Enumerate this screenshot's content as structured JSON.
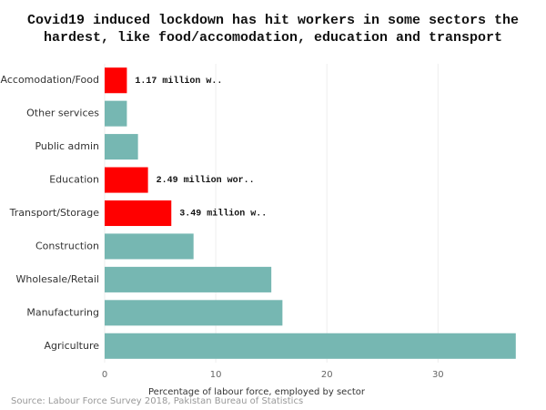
{
  "chart_data": {
    "type": "hbar",
    "title": [
      "Covid19 induced lockdown has hit workers in  some sectors the",
      "hardest, like food/accomodation, education and transport"
    ],
    "categories": [
      "Accomodation/Food",
      "Other services",
      "Public admin",
      "Education",
      "Transport/Storage",
      "Construction",
      "Wholesale/Retail",
      "Manufacturing",
      "Agriculture"
    ],
    "values": [
      2.0,
      2.0,
      3.0,
      3.9,
      6.0,
      8.0,
      15.0,
      16.0,
      37.0
    ],
    "colors": [
      "#ff0000",
      "#76b7b2",
      "#76b7b2",
      "#ff0000",
      "#ff0000",
      "#76b7b2",
      "#76b7b2",
      "#76b7b2",
      "#76b7b2"
    ],
    "bar_labels": [
      "1.17 million w..",
      null,
      null,
      "2.49 million wor..",
      "3.49 million w..",
      null,
      null,
      null,
      null
    ],
    "xlim": [
      0,
      38
    ],
    "xticks": [
      0,
      10,
      20,
      30
    ],
    "grid": true,
    "xlabel": "Percentage of labour force, employed by sector",
    "source": "Source: Labour Force Survey 2018, Pakistan Bureau of Statistics"
  }
}
